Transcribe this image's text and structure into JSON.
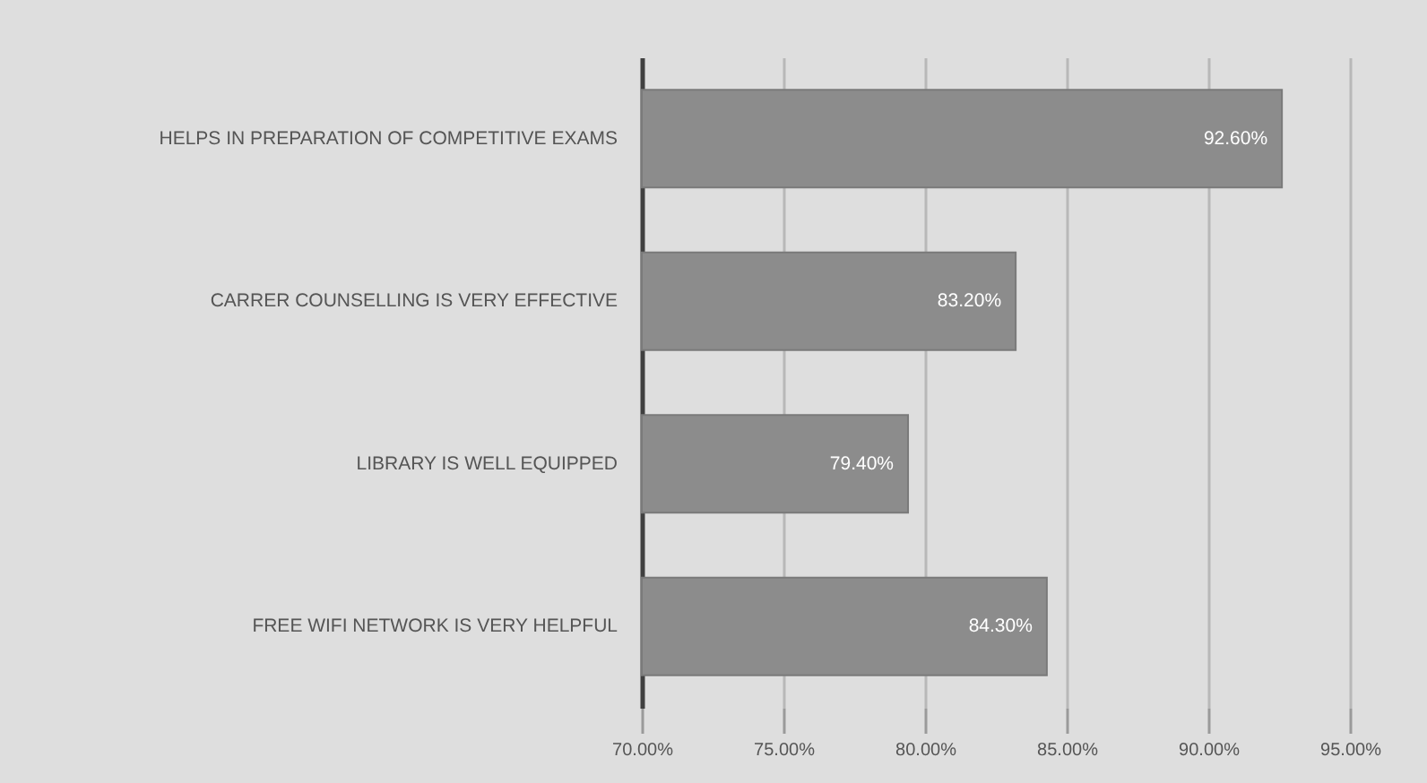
{
  "chart_data": {
    "type": "bar",
    "orientation": "horizontal",
    "categories": [
      "HELPS IN PREPARATION OF COMPETITIVE EXAMS",
      "CARRER COUNSELLING IS VERY EFFECTIVE",
      "LIBRARY IS WELL EQUIPPED",
      "FREE WIFI NETWORK IS VERY HELPFUL"
    ],
    "values": [
      92.6,
      83.2,
      79.4,
      84.3
    ],
    "value_labels": [
      "92.60%",
      "83.20%",
      "79.40%",
      "84.30%"
    ],
    "color": "#8c8c8c",
    "xlim": [
      70,
      95
    ],
    "xticks": [
      {
        "value": 70,
        "label": "70.00%"
      },
      {
        "value": 75,
        "label": "75.00%"
      },
      {
        "value": 80,
        "label": "80.00%"
      },
      {
        "value": 85,
        "label": "85.00%"
      },
      {
        "value": 90,
        "label": "90.00%"
      },
      {
        "value": 95,
        "label": "95.00%"
      }
    ],
    "grid": "x"
  }
}
